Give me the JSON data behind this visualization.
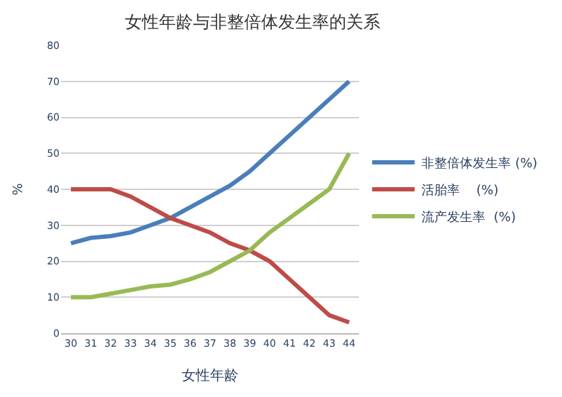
{
  "chart_data": {
    "type": "line",
    "title": "女性年龄与非整倍体发生率的关系",
    "xlabel": "女性年龄",
    "ylabel": "%",
    "categories": [
      "30",
      "31",
      "32",
      "33",
      "34",
      "35",
      "36",
      "37",
      "38",
      "39",
      "40",
      "41",
      "42",
      "43",
      "44"
    ],
    "series": [
      {
        "name": "非整倍体发生率 (%)",
        "color": "#4a7ebb",
        "values": [
          25,
          26.5,
          27,
          28,
          30,
          32,
          35,
          38,
          41,
          45,
          50,
          55,
          60,
          65,
          70
        ]
      },
      {
        "name": "活胎率    (%)",
        "color": "#be4b48",
        "values": [
          40,
          40,
          40,
          38,
          35,
          32,
          30,
          28,
          25,
          23,
          20,
          15,
          10,
          5,
          3
        ]
      },
      {
        "name": "流产发生率  (%)",
        "color": "#98b954",
        "values": [
          10,
          10,
          11,
          12,
          13,
          13.5,
          15,
          17,
          20,
          23,
          28,
          32,
          36,
          40,
          50
        ]
      }
    ],
    "ylim": [
      0,
      80
    ],
    "yticks": [
      0,
      10,
      20,
      30,
      40,
      50,
      60,
      70,
      80
    ],
    "grid": "y",
    "legend": "right",
    "marker": "none",
    "line_style": "solid"
  }
}
